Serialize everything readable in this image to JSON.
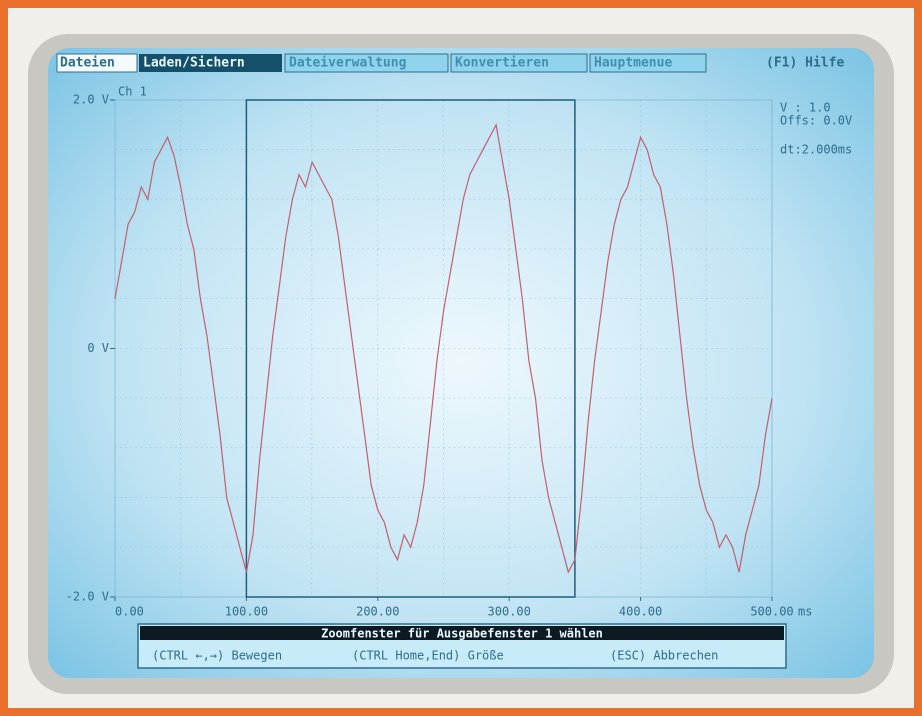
{
  "menu": {
    "items": [
      "Dateien",
      "Laden/Sichern",
      "Dateiverwaltung",
      "Konvertieren",
      "Hauptmenue"
    ],
    "help": "(F1) Hilfe"
  },
  "info": {
    "channel": "Ch 1",
    "volts": "V   : 1.0",
    "offset": "Offs: 0.0V",
    "dt": "dt:2.000ms"
  },
  "status_bar": {
    "title": "Zoomfenster für Ausgabefenster 1 wählen",
    "hints": [
      "(CTRL ←,→) Bewegen",
      "(CTRL Home,End) Größe",
      "(ESC) Abbrechen"
    ]
  },
  "chart_data": {
    "type": "line",
    "color": "#c06070",
    "x_label": "ms",
    "x": [
      0,
      5,
      10,
      15,
      20,
      25,
      30,
      35,
      40,
      45,
      50,
      55,
      60,
      65,
      70,
      75,
      80,
      85,
      90,
      95,
      100,
      105,
      110,
      115,
      120,
      125,
      130,
      135,
      140,
      145,
      150,
      155,
      160,
      165,
      170,
      175,
      180,
      185,
      190,
      195,
      200,
      205,
      210,
      215,
      220,
      225,
      230,
      235,
      240,
      245,
      250,
      255,
      260,
      265,
      270,
      275,
      280,
      285,
      290,
      295,
      300,
      305,
      310,
      315,
      320,
      325,
      330,
      335,
      340,
      345,
      350,
      355,
      360,
      365,
      370,
      375,
      380,
      385,
      390,
      395,
      400,
      405,
      410,
      415,
      420,
      425,
      430,
      435,
      440,
      445,
      450,
      455,
      460,
      465,
      470,
      475,
      480,
      485,
      490,
      495,
      500
    ],
    "values": [
      0.4,
      0.7,
      1.0,
      1.1,
      1.3,
      1.2,
      1.5,
      1.6,
      1.7,
      1.55,
      1.3,
      1.0,
      0.8,
      0.4,
      0.1,
      -0.3,
      -0.7,
      -1.2,
      -1.4,
      -1.6,
      -1.8,
      -1.5,
      -0.9,
      -0.4,
      0.1,
      0.5,
      0.9,
      1.2,
      1.4,
      1.3,
      1.5,
      1.4,
      1.3,
      1.2,
      0.9,
      0.5,
      0.1,
      -0.3,
      -0.7,
      -1.1,
      -1.3,
      -1.4,
      -1.6,
      -1.7,
      -1.5,
      -1.6,
      -1.4,
      -1.1,
      -0.6,
      -0.1,
      0.3,
      0.6,
      0.9,
      1.2,
      1.4,
      1.5,
      1.6,
      1.7,
      1.8,
      1.5,
      1.2,
      0.8,
      0.4,
      -0.1,
      -0.4,
      -0.9,
      -1.2,
      -1.4,
      -1.6,
      -1.8,
      -1.7,
      -1.2,
      -0.6,
      -0.1,
      0.3,
      0.7,
      1.0,
      1.2,
      1.3,
      1.5,
      1.7,
      1.6,
      1.4,
      1.3,
      1.0,
      0.6,
      0.1,
      -0.4,
      -0.8,
      -1.1,
      -1.3,
      -1.4,
      -1.6,
      -1.5,
      -1.6,
      -1.8,
      -1.5,
      -1.3,
      -1.1,
      -0.7,
      -0.4
    ],
    "xlim": [
      0,
      500
    ],
    "ylim": [
      -2,
      2
    ],
    "xticks": [
      {
        "value": 0,
        "label": "0.00"
      },
      {
        "value": 100,
        "label": "100.00"
      },
      {
        "value": 200,
        "label": "200.00"
      },
      {
        "value": 300,
        "label": "300.00"
      },
      {
        "value": 400,
        "label": "400.00"
      },
      {
        "value": 500,
        "label": "500.00"
      }
    ],
    "yticks": [
      {
        "value": -2,
        "label": "-2.0 V"
      },
      {
        "value": 0,
        "label": "0 V"
      },
      {
        "value": 2,
        "label": "2.0 V"
      }
    ],
    "zoom_window": [
      100,
      350
    ]
  }
}
